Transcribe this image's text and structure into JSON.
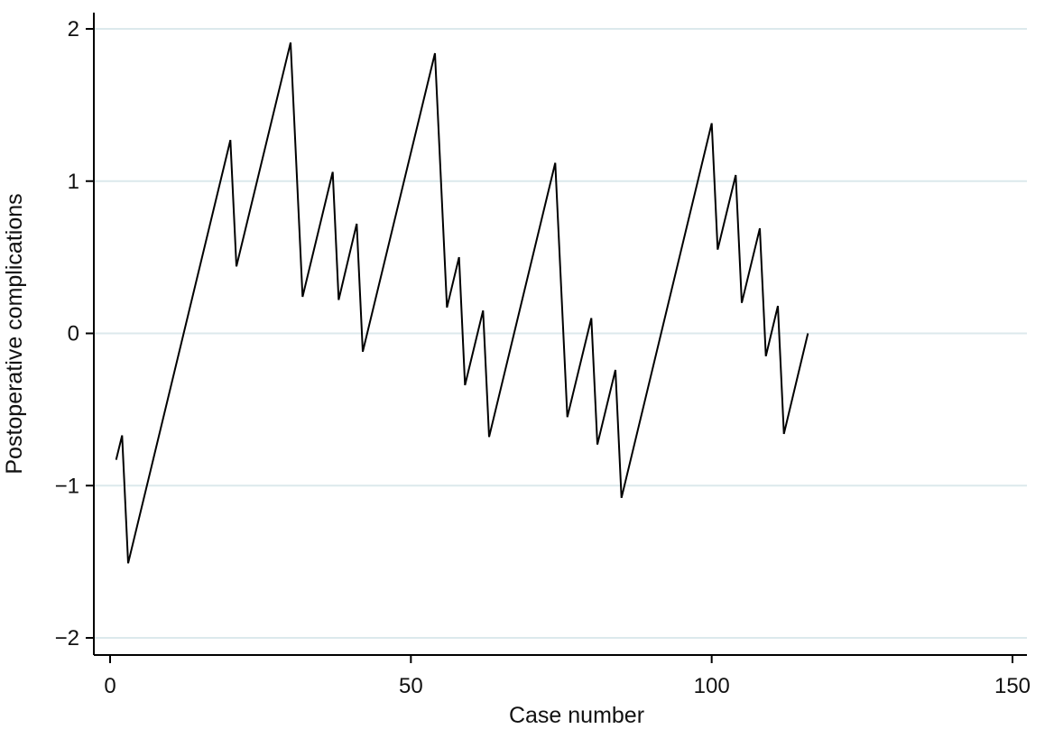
{
  "chart_data": {
    "type": "line",
    "xlabel": "Case number",
    "ylabel": "Postoperative complications",
    "xlim": [
      0,
      150
    ],
    "ylim": [
      -2,
      2
    ],
    "xticks": [
      0,
      50,
      100,
      150
    ],
    "yticks": [
      -2,
      -1,
      0,
      1,
      2
    ],
    "xtick_labels": [
      "0",
      "50",
      "100",
      "150"
    ],
    "ytick_labels": [
      "−2",
      "−1",
      "0",
      "1",
      "2"
    ],
    "grid": "horizontal",
    "legend": "none",
    "line_color": "#000000",
    "grid_color": "#dce9ec",
    "series": [
      {
        "x": [
          1,
          2,
          3,
          20,
          21,
          30,
          32,
          37,
          38,
          41,
          42,
          54,
          56,
          58,
          59,
          62,
          63,
          74,
          76,
          80,
          81,
          84,
          85,
          100,
          101,
          104,
          105,
          108,
          109,
          111,
          112,
          116
        ],
        "values": [
          -0.83,
          -0.67,
          -1.51,
          1.27,
          0.44,
          1.91,
          0.24,
          1.06,
          0.22,
          0.72,
          -0.12,
          1.84,
          0.17,
          0.5,
          -0.34,
          0.15,
          -0.68,
          1.12,
          -0.55,
          0.1,
          -0.73,
          -0.24,
          -1.08,
          1.38,
          0.55,
          1.04,
          0.2,
          0.69,
          -0.15,
          0.18,
          -0.66,
          0.0
        ]
      }
    ]
  }
}
